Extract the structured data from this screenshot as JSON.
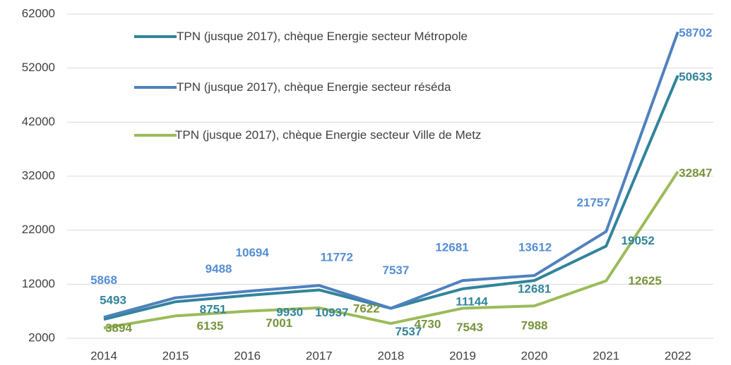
{
  "chart_data": {
    "type": "line",
    "categories": [
      "2014",
      "2015",
      "2016",
      "2017",
      "2018",
      "2019",
      "2020",
      "2021",
      "2022"
    ],
    "series": [
      {
        "name": "TPN (jusque 2017), chèque Energie secteur Métropole",
        "color": "#31849b",
        "label_color": "#31849b",
        "values": [
          5493,
          8751,
          9930,
          10937,
          7537,
          11144,
          12681,
          19052,
          50633
        ]
      },
      {
        "name": "TPN (jusque 2017), chèque Energie secteur réséda",
        "color": "#4f81bd",
        "label_color": "#558ed5",
        "values": [
          5868,
          9488,
          10694,
          11772,
          7537,
          12681,
          13612,
          21757,
          58702
        ]
      },
      {
        "name": "TPN (jusque 2017), chèque Energie secteur Ville de Metz",
        "color": "#9bbb59",
        "label_color": "#77933c",
        "values": [
          3894,
          6135,
          7001,
          7622,
          4730,
          7543,
          7988,
          12625,
          32847
        ]
      }
    ],
    "ylim": [
      2000,
      62000
    ],
    "yticks": [
      2000,
      12000,
      22000,
      32000,
      42000,
      52000,
      62000
    ],
    "grid": true
  }
}
